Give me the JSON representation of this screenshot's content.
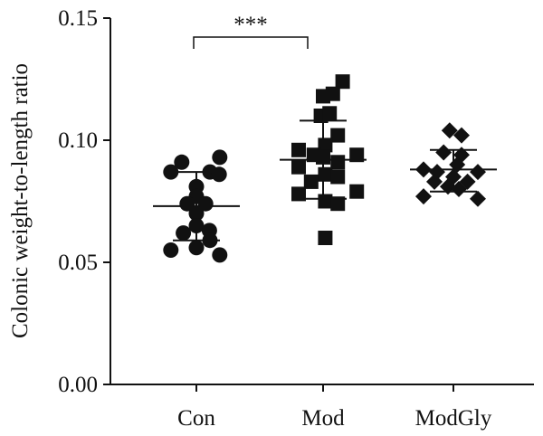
{
  "chart_data": {
    "type": "scatter",
    "ylabel": "Colonic weight-to-length ratio",
    "ylim": [
      0,
      0.15
    ],
    "yticks": [
      "0.00",
      "0.05",
      "0.10",
      "0.15"
    ],
    "categories": [
      "Con",
      "Mod",
      "ModGly"
    ],
    "significance": {
      "from": "Con",
      "to": "Mod",
      "label": "***"
    },
    "point_color": "#111111",
    "groups": [
      {
        "category": "Con",
        "marker": "circle",
        "mean": 0.073,
        "sd_upper": 0.087,
        "sd_lower": 0.059,
        "points": [
          {
            "j": -0.47,
            "y": 0.087
          },
          {
            "j": -0.27,
            "y": 0.091
          },
          {
            "j": 0.25,
            "y": 0.087
          },
          {
            "j": 0.43,
            "y": 0.093
          },
          {
            "j": 0.42,
            "y": 0.086
          },
          {
            "j": 0.0,
            "y": 0.081
          },
          {
            "j": 0.0,
            "y": 0.077
          },
          {
            "j": -0.17,
            "y": 0.074
          },
          {
            "j": 0.17,
            "y": 0.074
          },
          {
            "j": 0.0,
            "y": 0.07
          },
          {
            "j": 0.0,
            "y": 0.065
          },
          {
            "j": -0.24,
            "y": 0.062
          },
          {
            "j": 0.24,
            "y": 0.063
          },
          {
            "j": 0.25,
            "y": 0.059
          },
          {
            "j": -0.47,
            "y": 0.055
          },
          {
            "j": 0.0,
            "y": 0.056
          },
          {
            "j": 0.43,
            "y": 0.053
          }
        ]
      },
      {
        "category": "Mod",
        "marker": "square",
        "mean": 0.092,
        "sd_upper": 0.108,
        "sd_lower": 0.076,
        "points": [
          {
            "j": 0.36,
            "y": 0.124
          },
          {
            "j": 0.18,
            "y": 0.119
          },
          {
            "j": 0.0,
            "y": 0.118
          },
          {
            "j": -0.04,
            "y": 0.11
          },
          {
            "j": 0.12,
            "y": 0.111
          },
          {
            "j": 0.27,
            "y": 0.102
          },
          {
            "j": 0.04,
            "y": 0.098
          },
          {
            "j": -0.45,
            "y": 0.096
          },
          {
            "j": -0.17,
            "y": 0.094
          },
          {
            "j": 0.62,
            "y": 0.094
          },
          {
            "j": 0.0,
            "y": 0.093
          },
          {
            "j": -0.45,
            "y": 0.089
          },
          {
            "j": 0.27,
            "y": 0.091
          },
          {
            "j": 0.04,
            "y": 0.086
          },
          {
            "j": 0.27,
            "y": 0.085
          },
          {
            "j": -0.22,
            "y": 0.083
          },
          {
            "j": -0.45,
            "y": 0.078
          },
          {
            "j": 0.62,
            "y": 0.079
          },
          {
            "j": 0.04,
            "y": 0.075
          },
          {
            "j": 0.27,
            "y": 0.074
          },
          {
            "j": 0.04,
            "y": 0.06
          }
        ]
      },
      {
        "category": "ModGly",
        "marker": "diamond",
        "mean": 0.088,
        "sd_upper": 0.096,
        "sd_lower": 0.079,
        "points": [
          {
            "j": -0.07,
            "y": 0.104
          },
          {
            "j": 0.15,
            "y": 0.102
          },
          {
            "j": -0.18,
            "y": 0.095
          },
          {
            "j": 0.15,
            "y": 0.094
          },
          {
            "j": -0.55,
            "y": 0.088
          },
          {
            "j": -0.3,
            "y": 0.087
          },
          {
            "j": 0.07,
            "y": 0.09
          },
          {
            "j": 0.45,
            "y": 0.087
          },
          {
            "j": -0.35,
            "y": 0.083
          },
          {
            "j": 0.0,
            "y": 0.085
          },
          {
            "j": 0.26,
            "y": 0.083
          },
          {
            "j": -0.1,
            "y": 0.081
          },
          {
            "j": 0.1,
            "y": 0.08
          },
          {
            "j": -0.55,
            "y": 0.077
          },
          {
            "j": 0.45,
            "y": 0.076
          }
        ]
      }
    ]
  }
}
